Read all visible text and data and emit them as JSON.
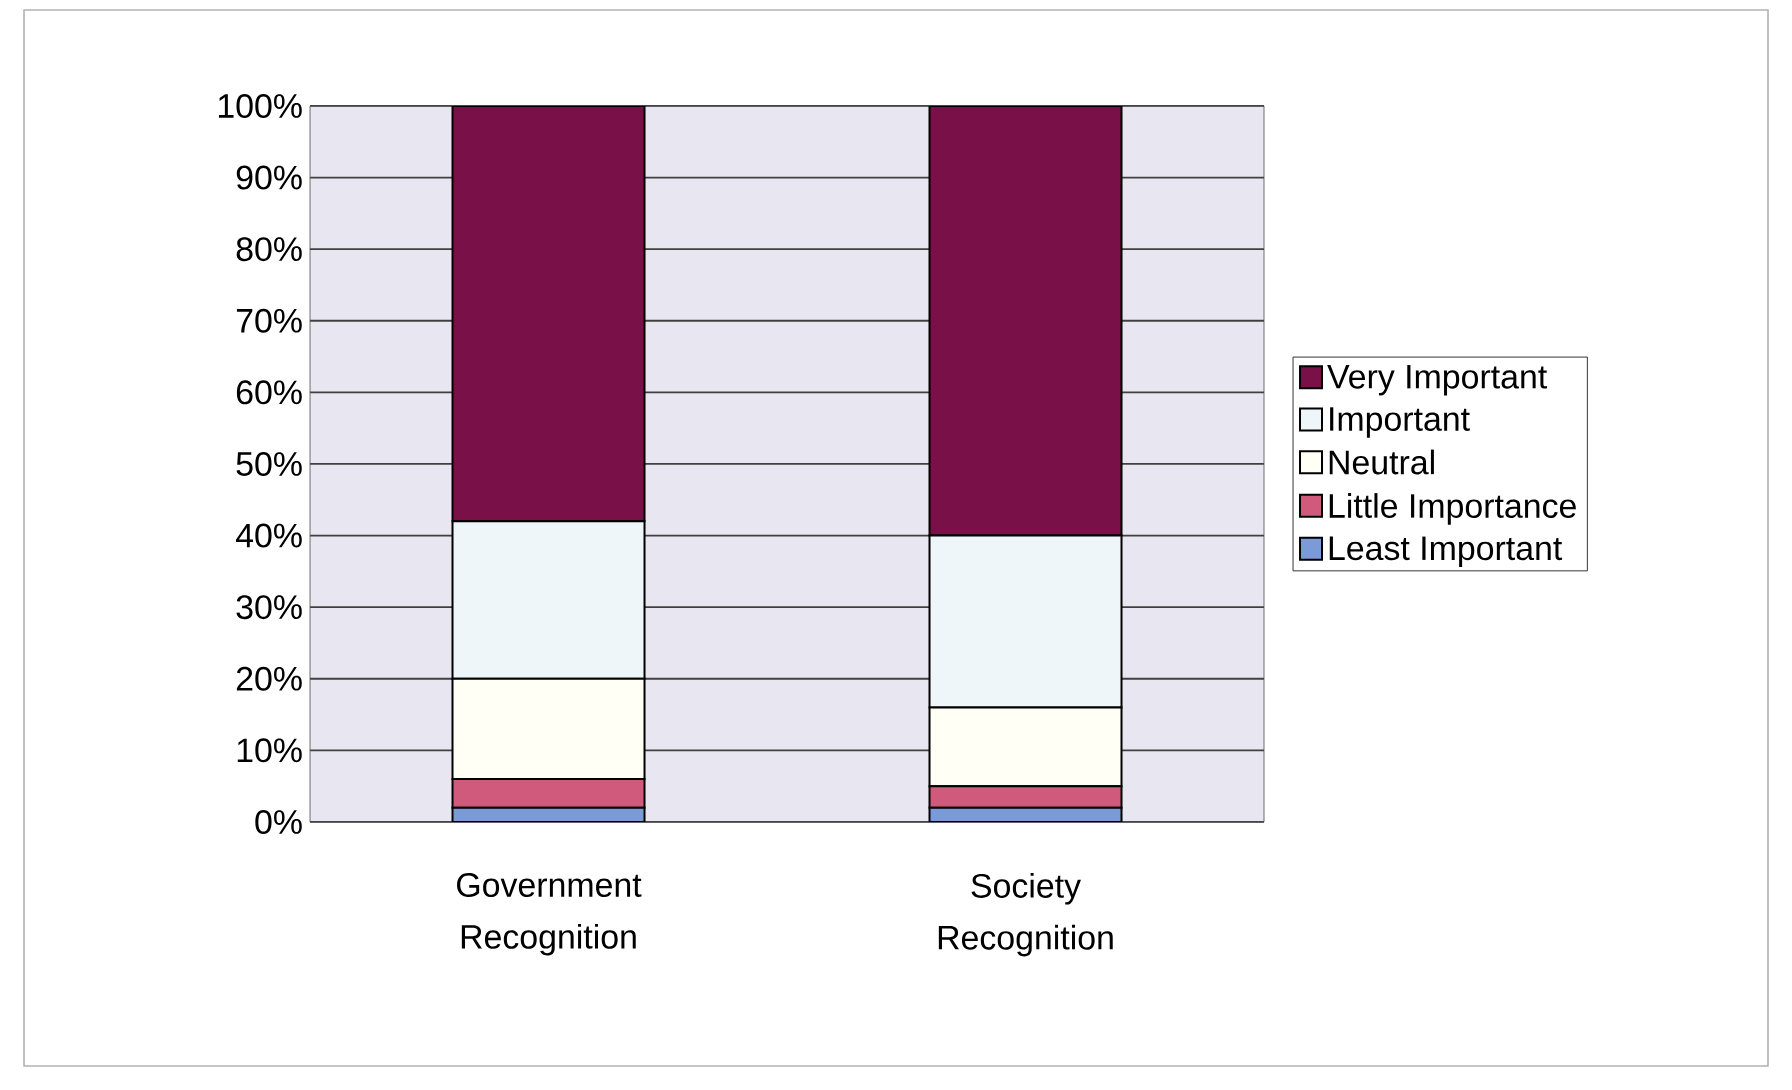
{
  "chart_data": {
    "type": "bar",
    "stacked": true,
    "categories": [
      "Government Recognition",
      "Society Recognition"
    ],
    "series": [
      {
        "name": "Least Important",
        "color": "#7b9ad8",
        "values": [
          2,
          2
        ]
      },
      {
        "name": "Little Importance",
        "color": "#d05a7c",
        "values": [
          4,
          3
        ]
      },
      {
        "name": "Neutral",
        "color": "#fffff6",
        "values": [
          14,
          11
        ]
      },
      {
        "name": "Important",
        "color": "#eef6fa",
        "values": [
          22,
          24
        ]
      },
      {
        "name": "Very Important",
        "color": "#7a1048",
        "values": [
          58,
          60
        ]
      }
    ],
    "ylim": [
      0,
      100
    ],
    "yticks": [
      {
        "value": 0,
        "label": "0%"
      },
      {
        "value": 10,
        "label": "10%"
      },
      {
        "value": 20,
        "label": "20%"
      },
      {
        "value": 30,
        "label": "30%"
      },
      {
        "value": 40,
        "label": "40%"
      },
      {
        "value": 50,
        "label": "50%"
      },
      {
        "value": 60,
        "label": "60%"
      },
      {
        "value": 70,
        "label": "70%"
      },
      {
        "value": 80,
        "label": "80%"
      },
      {
        "value": 90,
        "label": "90%"
      },
      {
        "value": 100,
        "label": "100%"
      }
    ],
    "grid": "y",
    "legend": "right"
  }
}
